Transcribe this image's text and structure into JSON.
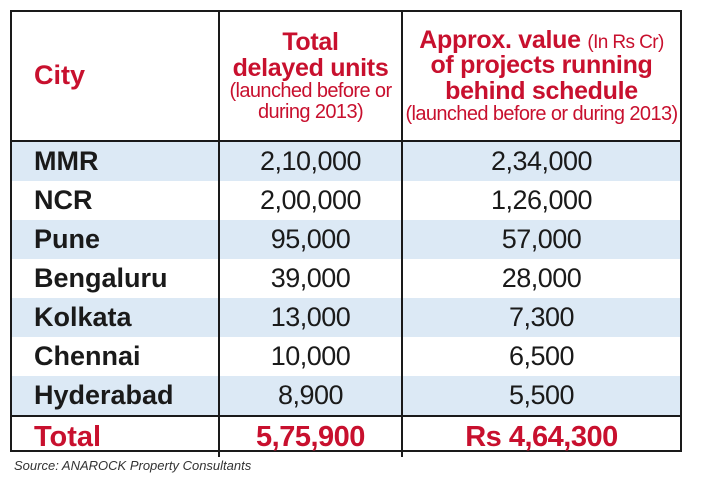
{
  "header": {
    "city": "City",
    "units_line1": "Total",
    "units_line2": "delayed units",
    "units_note": "(launched before or during 2013)",
    "value_line1": "Approx. value",
    "value_unit": "(In Rs Cr)",
    "value_line2": "of projects running",
    "value_line3": "behind schedule",
    "value_note": "(launched before or during 2013)"
  },
  "rows": [
    {
      "city": "MMR",
      "units": "2,10,000",
      "value": "2,34,000"
    },
    {
      "city": "NCR",
      "units": "2,00,000",
      "value": "1,26,000"
    },
    {
      "city": "Pune",
      "units": "95,000",
      "value": "57,000"
    },
    {
      "city": "Bengaluru",
      "units": "39,000",
      "value": "28,000"
    },
    {
      "city": "Kolkata",
      "units": "13,000",
      "value": "7,300"
    },
    {
      "city": "Chennai",
      "units": "10,000",
      "value": "6,500"
    },
    {
      "city": "Hyderabad",
      "units": "8,900",
      "value": "5,500"
    }
  ],
  "total": {
    "label": "Total",
    "units": "5,75,900",
    "value": "Rs 4,64,300"
  },
  "source": "Source: ANAROCK Property Consultants",
  "colors": {
    "accent": "#c8102e",
    "stripe": "#dce9f5",
    "text": "#1a1a1a"
  }
}
